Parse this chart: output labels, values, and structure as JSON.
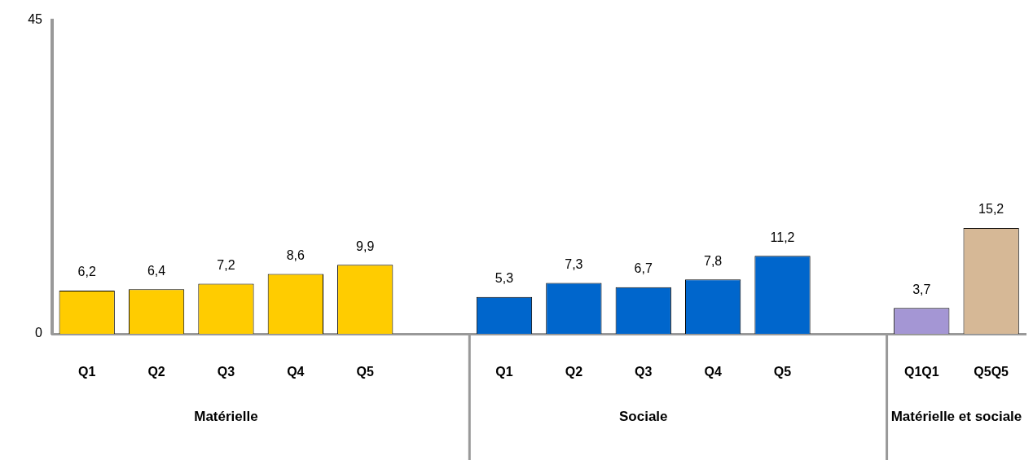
{
  "chart_data": {
    "type": "bar",
    "categories": [
      "Q1",
      "Q2",
      "Q3",
      "Q4",
      "Q5",
      null,
      "Q1",
      "Q2",
      "Q3",
      "Q4",
      "Q5",
      null,
      "Q1Q1",
      "Q5Q5"
    ],
    "values": [
      6.2,
      6.4,
      7.2,
      8.6,
      9.9,
      null,
      5.3,
      7.3,
      6.7,
      7.8,
      11.2,
      null,
      3.7,
      15.2
    ],
    "colors": [
      "#ffcc00",
      "#ffcc00",
      "#ffcc00",
      "#ffcc00",
      "#ffcc00",
      null,
      "#0066cc",
      "#0066cc",
      "#0066cc",
      "#0066cc",
      "#0066cc",
      null,
      "#a496d4",
      "#d6b896"
    ],
    "value_labels": [
      "6,2",
      "6,4",
      "7,2",
      "8,6",
      "9,9",
      null,
      "5,3",
      "7,3",
      "6,7",
      "7,8",
      "11,2",
      null,
      "3,7",
      "15,2"
    ],
    "annotations": [
      "Matérielle",
      "Sociale",
      "Matérielle et sociale"
    ],
    "ylim": [
      0,
      45
    ],
    "yticks": [
      0,
      45
    ],
    "grid": false,
    "legend": false
  }
}
